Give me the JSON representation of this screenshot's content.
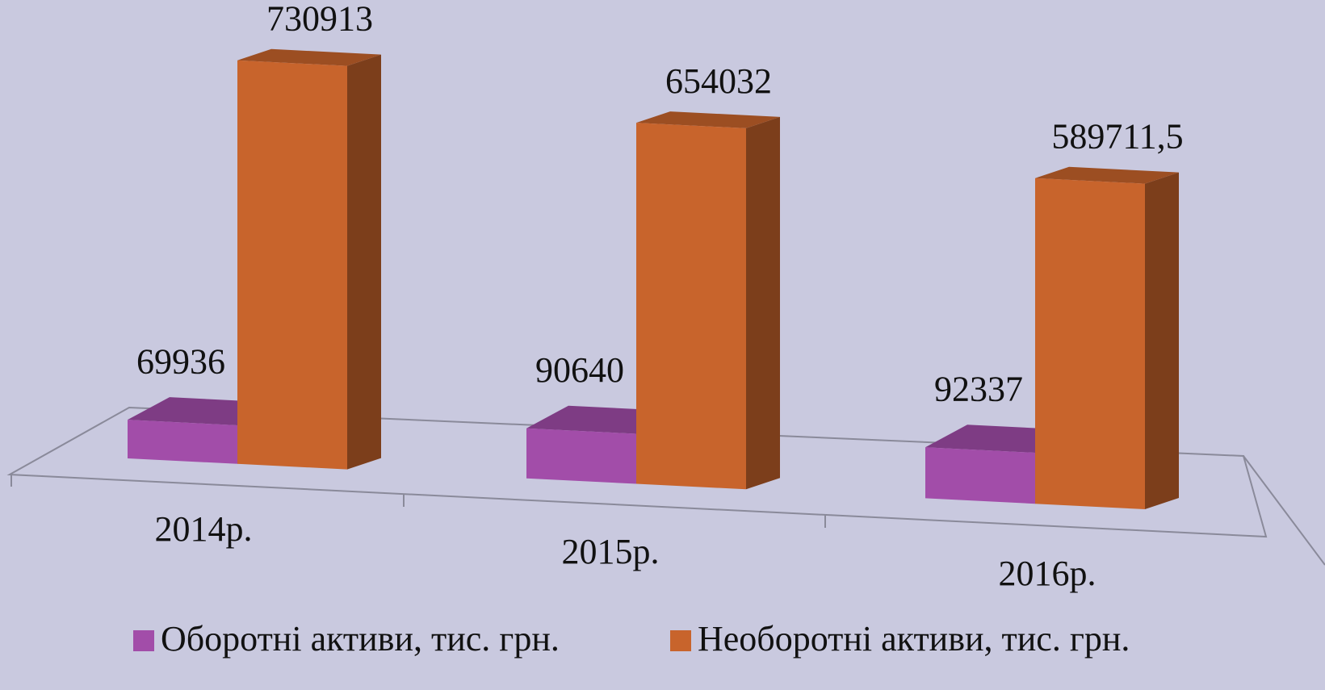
{
  "chart_data": {
    "type": "bar3d",
    "categories": [
      "2014р.",
      "2015р.",
      "2016р."
    ],
    "series": [
      {
        "name": "Оборотні активи, тис. грн.",
        "color": "#a24da9",
        "values": [
          69936,
          90640,
          92337
        ]
      },
      {
        "name": "Необоротні активи, тис. грн.",
        "color": "#c8642c",
        "values": [
          730913,
          654032,
          589711.5
        ],
        "value_labels": [
          "730913",
          "654032",
          "589711,5"
        ]
      }
    ]
  }
}
